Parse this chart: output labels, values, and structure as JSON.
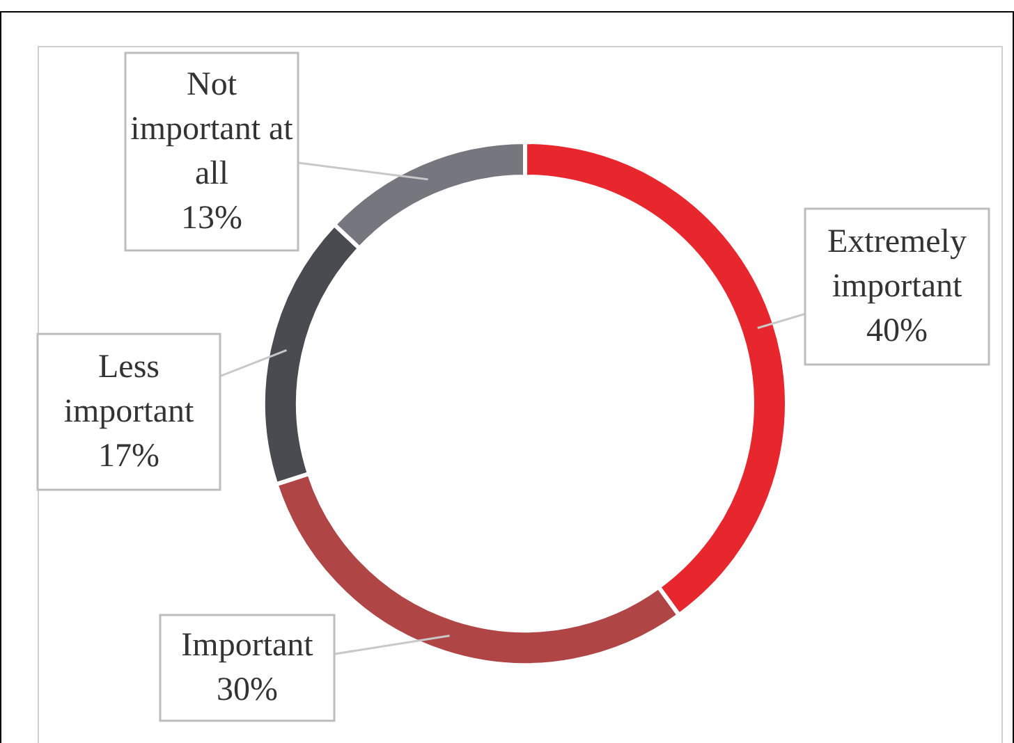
{
  "chart_data": {
    "type": "donut",
    "categories": [
      "Extremely important",
      "Important",
      "Less important",
      "Not important at all"
    ],
    "values": [
      40,
      30,
      17,
      13
    ],
    "colors": [
      "#e8262d",
      "#b04545",
      "#4a4b50",
      "#76767e"
    ],
    "value_labels": [
      "40%",
      "30%",
      "17%",
      "13%"
    ]
  }
}
